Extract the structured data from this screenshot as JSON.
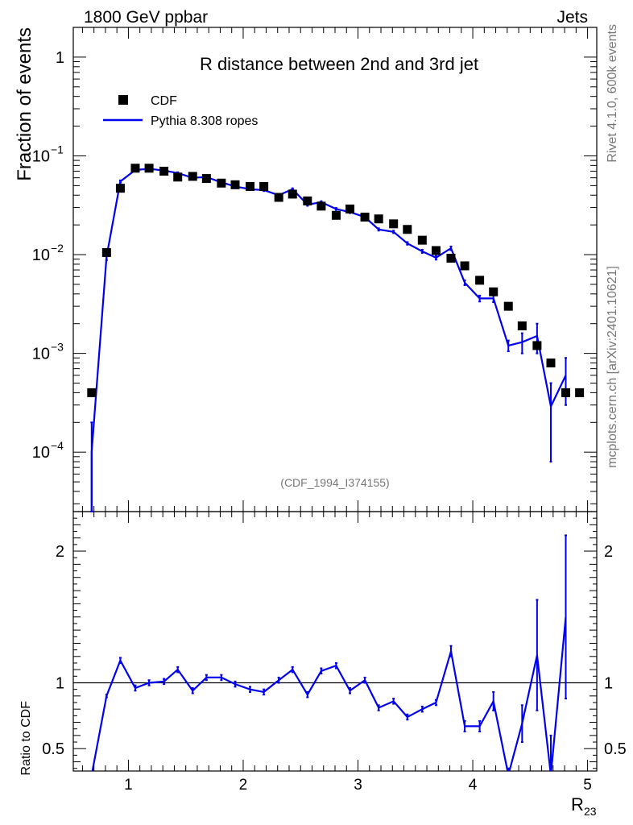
{
  "header": {
    "left": "1800 GeV ppbar",
    "right": "Jets"
  },
  "side": {
    "rivet": "Rivet 4.1.0,  600k events",
    "mcplots": "mcplots.cern.ch [arXiv:2401.10621]"
  },
  "colors": {
    "data": "#000000",
    "mc": "#0000ee",
    "frame": "#000000"
  },
  "chart_data": {
    "type": "scatter",
    "title": "R distance between 2nd and 3rd jet",
    "analysis_id": "(CDF_1994_I374155)",
    "xlabel": "R",
    "xlabel_sub": "23",
    "ylabel": "Fraction of events",
    "ratio_ylabel": "Ratio to CDF",
    "xlim": [
      0.52,
      5.08
    ],
    "ylim": [
      2.5e-05,
      2.0
    ],
    "ratio_ylim": [
      0.33,
      2.3
    ],
    "x_ticks": [
      1,
      2,
      3,
      4,
      5
    ],
    "x_tick_labels": [
      "1",
      "2",
      "3",
      "4",
      "5"
    ],
    "y_ticks": [
      0.0001,
      0.001,
      0.01,
      0.1,
      1
    ],
    "y_tick_labels": [
      {
        "base": "10",
        "exp": "−4"
      },
      {
        "base": "10",
        "exp": "−3"
      },
      {
        "base": "10",
        "exp": "−2"
      },
      {
        "base": "10",
        "exp": "−1"
      },
      {
        "base": "1",
        "exp": ""
      }
    ],
    "ratio_y_ticks": [
      0.5,
      1,
      2
    ],
    "ratio_y_tick_labels": [
      "0.5",
      "1",
      "2"
    ],
    "legend": [
      {
        "label": "CDF",
        "style": "marker"
      },
      {
        "label": "Pythia 8.308 ropes",
        "style": "line"
      }
    ],
    "series": [
      {
        "name": "CDF",
        "x": [
          0.68,
          0.81,
          0.93,
          1.06,
          1.18,
          1.31,
          1.43,
          1.56,
          1.68,
          1.81,
          1.93,
          2.06,
          2.18,
          2.31,
          2.43,
          2.56,
          2.68,
          2.81,
          2.93,
          3.06,
          3.18,
          3.31,
          3.43,
          3.56,
          3.68,
          3.81,
          3.93,
          4.06,
          4.18,
          4.31,
          4.43,
          4.56,
          4.68,
          4.81,
          4.93
        ],
        "values": [
          0.0004,
          0.0105,
          0.047,
          0.075,
          0.075,
          0.07,
          0.061,
          0.062,
          0.059,
          0.053,
          0.051,
          0.049,
          0.049,
          0.038,
          0.041,
          0.035,
          0.031,
          0.025,
          0.029,
          0.024,
          0.023,
          0.0205,
          0.018,
          0.014,
          0.011,
          0.0092,
          0.0077,
          0.0055,
          0.0042,
          0.003,
          0.0019,
          0.0012,
          0.0008,
          0.0004,
          0.0004
        ]
      },
      {
        "name": "Pythia 8.308 ropes",
        "x": [
          0.68,
          0.81,
          0.93,
          1.06,
          1.18,
          1.31,
          1.43,
          1.56,
          1.68,
          1.81,
          1.93,
          2.06,
          2.18,
          2.31,
          2.43,
          2.56,
          2.68,
          2.81,
          2.93,
          3.06,
          3.18,
          3.31,
          3.43,
          3.56,
          3.68,
          3.81,
          3.93,
          4.06,
          4.18,
          4.31,
          4.43,
          4.56,
          4.68,
          4.81
        ],
        "values": [
          0.0001,
          0.0095,
          0.055,
          0.072,
          0.074,
          0.071,
          0.067,
          0.06,
          0.061,
          0.054,
          0.049,
          0.046,
          0.045,
          0.04,
          0.046,
          0.032,
          0.034,
          0.029,
          0.027,
          0.024,
          0.018,
          0.017,
          0.013,
          0.0108,
          0.0093,
          0.0116,
          0.0052,
          0.0036,
          0.0036,
          0.0012,
          0.0013,
          0.0015,
          0.00029,
          0.0006
        ],
        "err_lo": [
          0.0001,
          0.0007,
          0.0015,
          0.0015,
          0.0015,
          0.0015,
          0.0013,
          0.0012,
          0.0012,
          0.0011,
          0.001,
          0.001,
          0.001,
          0.0009,
          0.001,
          0.0008,
          0.0008,
          0.0007,
          0.0007,
          0.0006,
          0.0005,
          0.0005,
          0.0004,
          0.0004,
          0.0004,
          0.0005,
          0.0003,
          0.00025,
          0.0003,
          0.00015,
          0.0003,
          0.0005,
          0.00021,
          0.0003
        ],
        "err_hi": [
          0.0001,
          0.0007,
          0.0015,
          0.0015,
          0.0015,
          0.0015,
          0.0013,
          0.0012,
          0.0012,
          0.0011,
          0.001,
          0.001,
          0.001,
          0.0009,
          0.001,
          0.0008,
          0.0008,
          0.0007,
          0.0007,
          0.0006,
          0.0005,
          0.0005,
          0.0004,
          0.0004,
          0.0004,
          0.0005,
          0.0003,
          0.00025,
          0.0003,
          0.00015,
          0.0003,
          0.0005,
          0.00021,
          0.0003
        ],
        "ratio": [
          0.3,
          0.9,
          1.17,
          0.96,
          1.0,
          1.01,
          1.1,
          0.94,
          1.04,
          1.04,
          0.99,
          0.95,
          0.93,
          1.02,
          1.1,
          0.91,
          1.09,
          1.13,
          0.94,
          1.02,
          0.81,
          0.86,
          0.74,
          0.8,
          0.85,
          1.24,
          0.67,
          0.67,
          0.86,
          0.3,
          0.69,
          1.21,
          0.3,
          1.5
        ],
        "ratio_err": [
          0,
          0.01,
          0.02,
          0.02,
          0.02,
          0.02,
          0.02,
          0.02,
          0.02,
          0.02,
          0.02,
          0.02,
          0.02,
          0.02,
          0.02,
          0.02,
          0.02,
          0.02,
          0.02,
          0.02,
          0.02,
          0.02,
          0.02,
          0.02,
          0.02,
          0.04,
          0.04,
          0.04,
          0.07,
          0.05,
          0.14,
          0.42,
          0.3,
          0.62
        ]
      }
    ]
  }
}
